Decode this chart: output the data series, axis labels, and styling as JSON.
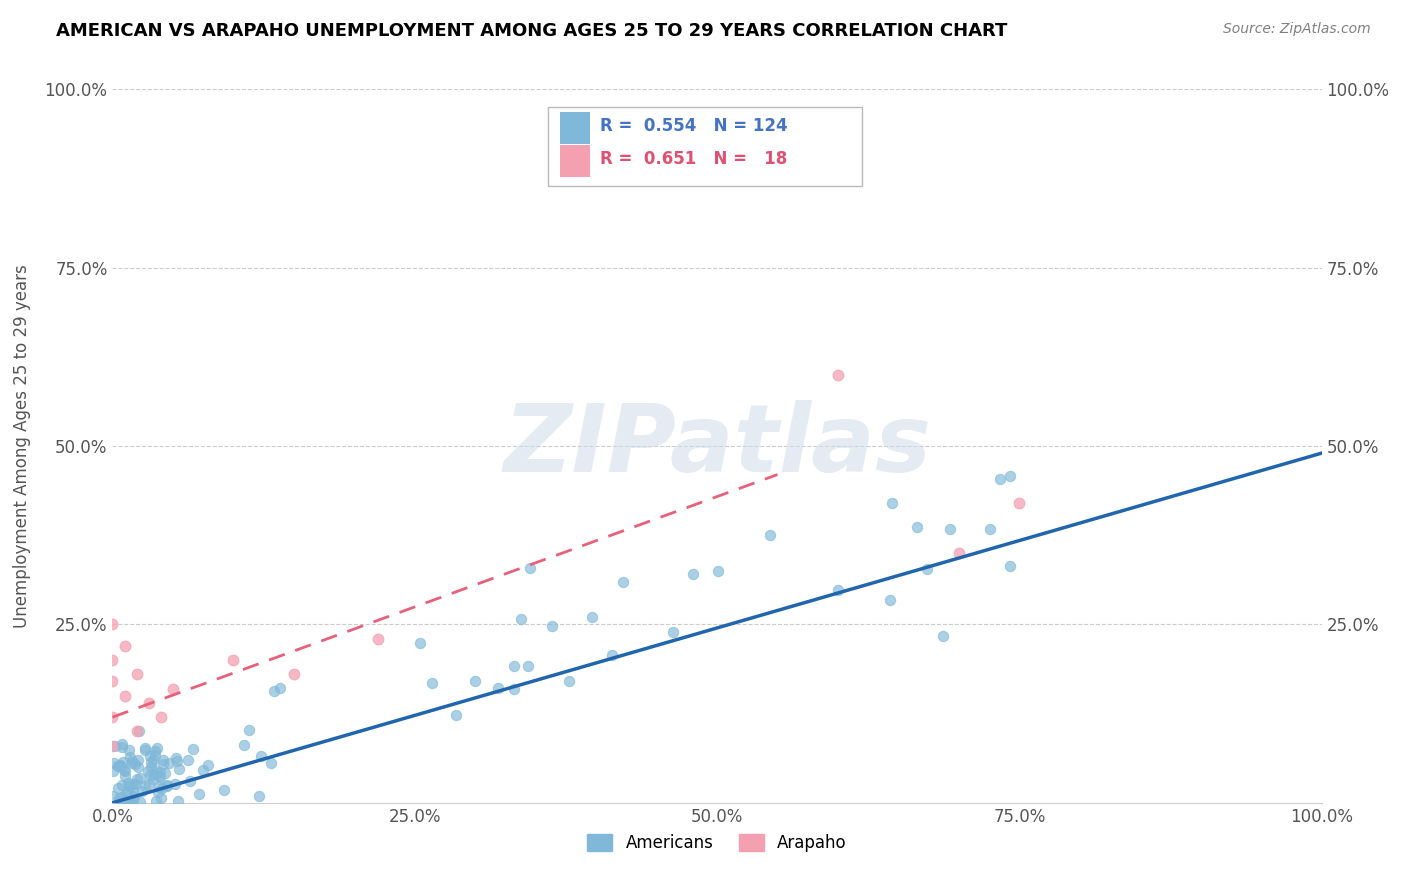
{
  "title": "AMERICAN VS ARAPAHO UNEMPLOYMENT AMONG AGES 25 TO 29 YEARS CORRELATION CHART",
  "source": "Source: ZipAtlas.com",
  "ylabel": "Unemployment Among Ages 25 to 29 years",
  "xlim": [
    0,
    1.0
  ],
  "ylim": [
    0,
    1.0
  ],
  "xticks": [
    0.0,
    0.25,
    0.5,
    0.75,
    1.0
  ],
  "yticks": [
    0.0,
    0.25,
    0.5,
    0.75,
    1.0
  ],
  "xticklabels": [
    "0.0%",
    "25.0%",
    "50.0%",
    "75.0%",
    "100.0%"
  ],
  "yticklabels": [
    "",
    "25.0%",
    "50.0%",
    "75.0%",
    "100.0%"
  ],
  "right_yticklabels": [
    "25.0%",
    "50.0%",
    "75.0%",
    "100.0%"
  ],
  "americans_color": "#7fb8d8",
  "arapaho_color": "#f4a0b0",
  "americans_line_color": "#2166ac",
  "arapaho_line_color": "#e8607a",
  "legend_label1": "Americans",
  "legend_label2": "Arapaho",
  "watermark_text": "ZIPatlas",
  "background_color": "#ffffff",
  "am_line_x0": 0.0,
  "am_line_y0": 0.0,
  "am_line_x1": 1.0,
  "am_line_y1": 0.49,
  "ar_line_x0": 0.0,
  "ar_line_y0": 0.12,
  "ar_line_x1": 0.55,
  "ar_line_y1": 0.46,
  "seed": 99
}
